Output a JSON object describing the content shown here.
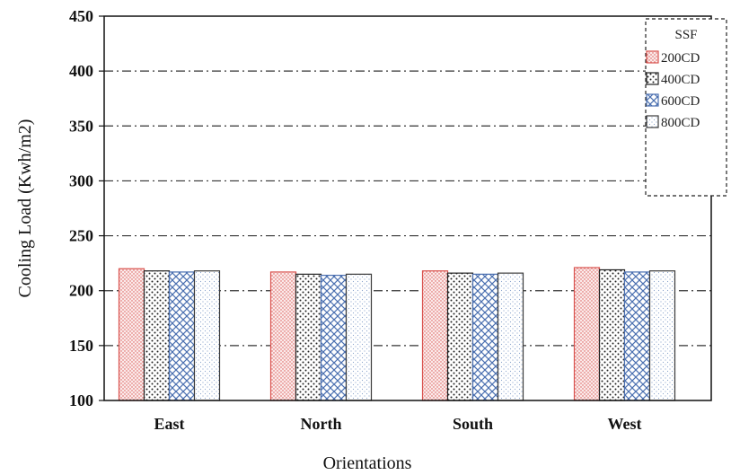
{
  "chart_data": {
    "type": "bar",
    "title": "",
    "xlabel": "Orientations",
    "ylabel": "Cooling Load (Kwh/m2)",
    "ylim": [
      100,
      450
    ],
    "yticks": [
      100,
      150,
      200,
      250,
      300,
      350,
      400,
      450
    ],
    "grid": "horizontal dash-dot",
    "categories": [
      "East",
      "North",
      "South",
      "West"
    ],
    "legend_title": "SSF",
    "legend_position": "top-right",
    "series": [
      {
        "name": "200CD",
        "values": [
          220,
          217,
          218,
          221
        ],
        "color": "#d9534f",
        "pattern": "fine-dots"
      },
      {
        "name": "400CD",
        "values": [
          218,
          215,
          216,
          219
        ],
        "color": "#222222",
        "pattern": "dots"
      },
      {
        "name": "600CD",
        "values": [
          217,
          214,
          215,
          217
        ],
        "color": "#4a6fb0",
        "pattern": "crosshatch"
      },
      {
        "name": "800CD",
        "values": [
          218,
          215,
          216,
          218
        ],
        "color": "#3b3b3b",
        "pattern": "light-dots"
      }
    ]
  }
}
